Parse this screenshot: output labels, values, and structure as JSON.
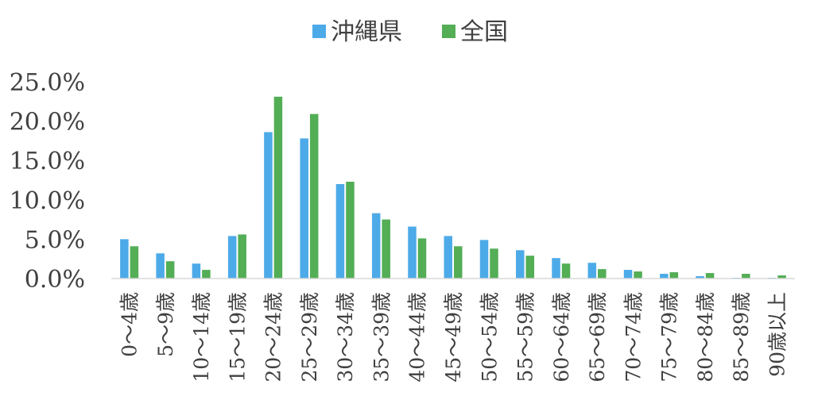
{
  "chart_data": {
    "type": "bar",
    "title": "",
    "xlabel": "",
    "ylabel": "",
    "ylim": [
      0,
      25
    ],
    "yticks": [
      "0.0%",
      "5.0%",
      "10.0%",
      "15.0%",
      "20.0%",
      "25.0%"
    ],
    "grid": false,
    "legend_position": "top-center",
    "categories": [
      "0～4歳",
      "5～9歳",
      "10～14歳",
      "15～19歳",
      "20～24歳",
      "25～29歳",
      "30～34歳",
      "35～39歳",
      "40～44歳",
      "45～49歳",
      "50～54歳",
      "55～59歳",
      "60～64歳",
      "65～69歳",
      "70～74歳",
      "75～79歳",
      "80～84歳",
      "85～89歳",
      "90歳以上"
    ],
    "series": [
      {
        "name": "沖縄県",
        "color": "#4daae8",
        "values": [
          5.0,
          3.2,
          1.9,
          5.4,
          18.6,
          17.8,
          12.0,
          8.3,
          6.6,
          5.4,
          4.9,
          3.6,
          2.6,
          2.0,
          1.1,
          0.6,
          0.3,
          0.1,
          0.1
        ]
      },
      {
        "name": "全国",
        "color": "#53ae55",
        "values": [
          4.1,
          2.2,
          1.1,
          5.6,
          23.1,
          20.9,
          12.3,
          7.5,
          5.1,
          4.1,
          3.8,
          2.9,
          1.9,
          1.2,
          0.9,
          0.8,
          0.7,
          0.6,
          0.4
        ]
      }
    ]
  }
}
